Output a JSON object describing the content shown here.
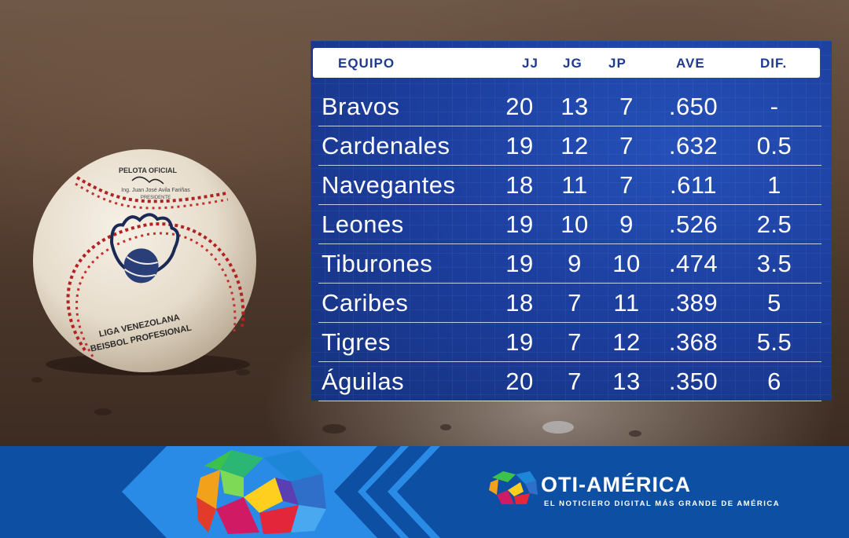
{
  "table": {
    "headers": {
      "team": "EQUIPO",
      "jj": "JJ",
      "jg": "JG",
      "jp": "JP",
      "ave": "AVE",
      "dif": "DIF."
    },
    "rows": [
      {
        "team": "Bravos",
        "jj": "20",
        "jg": "13",
        "jp": "7",
        "ave": ".650",
        "dif": "-"
      },
      {
        "team": "Cardenales",
        "jj": "19",
        "jg": "12",
        "jp": "7",
        "ave": ".632",
        "dif": "0.5"
      },
      {
        "team": "Navegantes",
        "jj": "18",
        "jg": "11",
        "jp": "7",
        "ave": ".611",
        "dif": "1"
      },
      {
        "team": "Leones",
        "jj": "19",
        "jg": "10",
        "jp": "9",
        "ave": ".526",
        "dif": "2.5"
      },
      {
        "team": "Tiburones",
        "jj": "19",
        "jg": "9",
        "jp": "10",
        "ave": ".474",
        "dif": "3.5"
      },
      {
        "team": "Caribes",
        "jj": "18",
        "jg": "7",
        "jp": "11",
        "ave": ".389",
        "dif": "5"
      },
      {
        "team": "Tigres",
        "jj": "19",
        "jg": "7",
        "jp": "12",
        "ave": ".368",
        "dif": "5.5"
      },
      {
        "team": "Águilas",
        "jj": "20",
        "jg": "7",
        "jp": "13",
        "ave": ".350",
        "dif": "6"
      }
    ]
  },
  "ball": {
    "stamp_top": "PELOTA OFICIAL",
    "stamp_name": "Ing. Juan José Avila Fariñas",
    "stamp_role": "PRESIDENTE",
    "league_line1": "LIGA VENEZOLANA",
    "league_line2": "BEISBOL PROFESIONAL"
  },
  "brand": {
    "name": "OTI-AMÉRICA",
    "tagline": "EL NOTICIERO DIGITAL MÁS GRANDE DE AMÉRICA"
  },
  "colors": {
    "table_bg": "#1b3c9a",
    "header_bg": "#ffffff",
    "header_text": "#1f3a8e",
    "banner_bg": "#0c4fa3",
    "banner_light": "#2a8be6"
  },
  "icons": [
    "baseball-icon",
    "noticiero-logo-icon",
    "chevron-icon"
  ]
}
